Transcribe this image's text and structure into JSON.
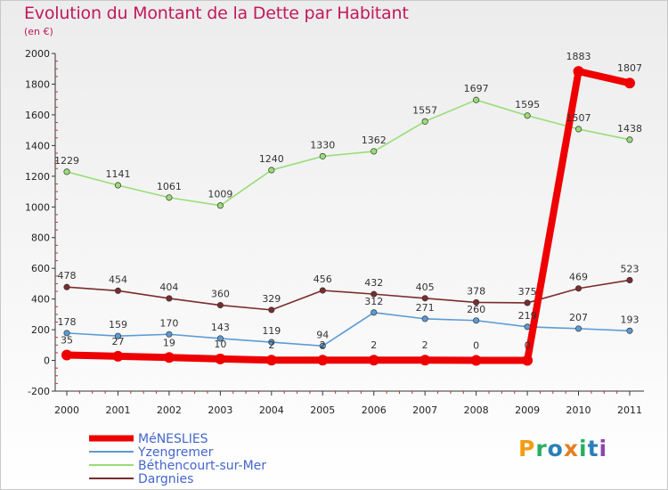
{
  "title": "Evolution du Montant de la Dette par Habitant",
  "subtitle": "(en €)",
  "logo": {
    "letters": [
      "P",
      "r",
      "o",
      "x",
      "i",
      "t",
      "i"
    ],
    "colors": [
      "#f39c12",
      "#27ae60",
      "#2980b9",
      "#e67e22",
      "#27ae60",
      "#2980b9",
      "#8e44ad"
    ]
  },
  "chart_data": {
    "type": "line",
    "title": "Evolution du Montant de la Dette par Habitant",
    "subtitle": "(en €)",
    "x": [
      "2000",
      "2001",
      "2002",
      "2003",
      "2004",
      "2005",
      "2006",
      "2007",
      "2008",
      "2009",
      "2010",
      "2011"
    ],
    "ylim": [
      -200,
      2000
    ],
    "yticks": [
      "-200",
      "0",
      "200",
      "400",
      "600",
      "800",
      "1000",
      "1200",
      "1400",
      "1600",
      "1800",
      "2000"
    ],
    "grid": false,
    "legend_position": "bottom-left",
    "series": [
      {
        "name": "MéNESLIES",
        "color": "#ee0000",
        "values": [
          35,
          27,
          19,
          10,
          2,
          2,
          2,
          2,
          0,
          0,
          1883,
          1807
        ],
        "labels": [
          "35",
          "27",
          "19",
          "10",
          "2",
          "2",
          "2",
          "2",
          "0",
          "0",
          "1883",
          "1807"
        ]
      },
      {
        "name": "Yzengremer",
        "color": "#5b9bd5",
        "values": [
          178,
          159,
          170,
          143,
          119,
          94,
          312,
          271,
          260,
          219,
          207,
          193
        ],
        "labels": [
          "178",
          "159",
          "170",
          "143",
          "119",
          "94",
          "312",
          "271",
          "260",
          "219",
          "207",
          "193"
        ]
      },
      {
        "name": "Béthencourt-sur-Mer",
        "color": "#99dd77",
        "values": [
          1229,
          1141,
          1061,
          1009,
          1240,
          1330,
          1362,
          1557,
          1697,
          1595,
          1507,
          1438
        ],
        "labels": [
          "1229",
          "1141",
          "1061",
          "1009",
          "1240",
          "1330",
          "1362",
          "1557",
          "1697",
          "1595",
          "1507",
          "1438"
        ]
      },
      {
        "name": "Dargnies",
        "color": "#7b2c2c",
        "values": [
          478,
          454,
          404,
          360,
          329,
          456,
          432,
          405,
          378,
          375,
          469,
          523
        ],
        "labels": [
          "478",
          "454",
          "404",
          "360",
          "329",
          "456",
          "432",
          "405",
          "378",
          "375",
          "469",
          "523"
        ]
      }
    ]
  }
}
